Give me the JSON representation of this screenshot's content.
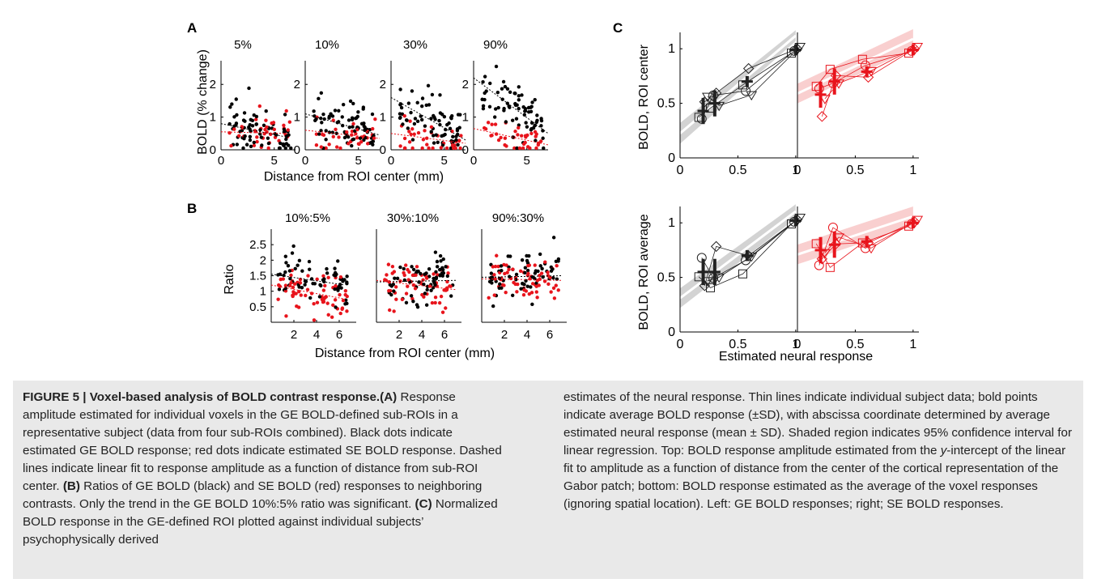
{
  "panel_letters": {
    "A": "A",
    "B": "B",
    "C": "C"
  },
  "panel_a": {
    "titles": [
      "5%",
      "10%",
      "30%",
      "90%"
    ],
    "ylabel": "BOLD (% change)",
    "xlabel": "Distance from ROI center (mm)",
    "yticks": [
      "0",
      "1",
      "2"
    ],
    "xticks": [
      "0",
      "5"
    ]
  },
  "panel_b": {
    "titles": [
      "10%:5%",
      "30%:10%",
      "90%:30%"
    ],
    "ylabel": "Ratio",
    "xlabel": "Distance from ROI center (mm)",
    "yticks": [
      "0.5",
      "1",
      "1.5",
      "2",
      "2.5"
    ],
    "xticks": [
      "2",
      "4",
      "6"
    ]
  },
  "panel_c": {
    "ylabel_top": "BOLD, ROI center",
    "ylabel_bottom": "BOLD, ROI average",
    "xlabel": "Estimated neural response",
    "yticks": [
      "0",
      "0.5",
      "1"
    ],
    "xticks": [
      "0",
      "0.5",
      "1"
    ]
  },
  "chart_data": [
    {
      "type": "scatter",
      "panel": "A",
      "ylabel": "BOLD (% change)",
      "xlabel": "Distance from ROI center (mm)",
      "xlim": [
        0,
        7
      ],
      "ylim": [
        0,
        2.6
      ],
      "subplots": [
        {
          "title": "5%",
          "fit_ge": [
            [
              0,
              0.8
            ],
            [
              6,
              0.4
            ]
          ],
          "fit_se": [
            [
              0,
              0.55
            ],
            [
              6,
              0.5
            ]
          ]
        },
        {
          "title": "10%",
          "fit_ge": [
            [
              0,
              1.1
            ],
            [
              7,
              0.45
            ]
          ],
          "fit_se": [
            [
              0,
              0.6
            ],
            [
              7,
              0.35
            ]
          ]
        },
        {
          "title": "30%",
          "fit_ge": [
            [
              0,
              1.6
            ],
            [
              7,
              0.3
            ]
          ],
          "fit_se": [
            [
              0,
              0.5
            ],
            [
              7,
              0.2
            ]
          ]
        },
        {
          "title": "90%",
          "fit_ge": [
            [
              0,
              2.2
            ],
            [
              7,
              0.5
            ]
          ],
          "fit_se": [
            [
              0,
              0.65
            ],
            [
              7,
              0.15
            ]
          ]
        }
      ]
    },
    {
      "type": "scatter",
      "panel": "B",
      "ylabel": "Ratio",
      "xlabel": "Distance from ROI center (mm)",
      "xlim": [
        0,
        7.5
      ],
      "ylim": [
        0,
        3
      ],
      "subplots": [
        {
          "title": "10%:5%",
          "fit_ge": [
            [
              0,
              1.55
            ],
            [
              6.5,
              1.2
            ]
          ],
          "fit_se": [
            [
              0,
              1.2
            ],
            [
              6.5,
              0.75
            ]
          ]
        },
        {
          "title": "30%:10%",
          "fit_ge": [
            [
              0,
              1.3
            ],
            [
              7,
              1.35
            ]
          ],
          "fit_se": [
            [
              0,
              1.35
            ],
            [
              7,
              1.05
            ]
          ]
        },
        {
          "title": "90%:30%",
          "fit_ge": [
            [
              0,
              1.45
            ],
            [
              7,
              1.5
            ]
          ],
          "fit_se": [
            [
              0,
              1.4
            ],
            [
              7,
              1.35
            ]
          ]
        }
      ]
    },
    {
      "type": "line",
      "panel": "C",
      "xlabel": "Estimated neural response",
      "xlim": [
        0,
        1.05
      ],
      "ylim": [
        0,
        1.15
      ],
      "rows": [
        {
          "ylabel": "BOLD, ROI center",
          "ge": {
            "means": [
              [
                0.2,
                0.43
              ],
              [
                0.3,
                0.5
              ],
              [
                0.58,
                0.7
              ],
              [
                1.0,
                0.99
              ]
            ],
            "band_lo": [
              [
                0,
                0.13
              ],
              [
                1,
                1.07
              ]
            ],
            "band_hi": [
              [
                0,
                0.32
              ],
              [
                1,
                1.17
              ]
            ]
          },
          "se": {
            "means": [
              [
                0.2,
                0.58
              ],
              [
                0.32,
                0.7
              ],
              [
                0.6,
                0.79
              ],
              [
                1.0,
                0.99
              ]
            ],
            "band_lo": [
              [
                0,
                0.5
              ],
              [
                1,
                1.0
              ]
            ],
            "band_hi": [
              [
                0,
                0.68
              ],
              [
                1,
                1.18
              ]
            ]
          }
        },
        {
          "ylabel": "BOLD, ROI average",
          "ge": {
            "means": [
              [
                0.2,
                0.55
              ],
              [
                0.3,
                0.55
              ],
              [
                0.58,
                0.7
              ],
              [
                1.0,
                1.02
              ]
            ],
            "band_lo": [
              [
                0,
                0.22
              ],
              [
                1,
                1.04
              ]
            ],
            "band_hi": [
              [
                0,
                0.4
              ],
              [
                1,
                1.17
              ]
            ]
          },
          "se": {
            "means": [
              [
                0.2,
                0.75
              ],
              [
                0.32,
                0.8
              ],
              [
                0.6,
                0.83
              ],
              [
                1.0,
                1.0
              ]
            ],
            "band_lo": [
              [
                0,
                0.62
              ],
              [
                1,
                0.97
              ]
            ],
            "band_hi": [
              [
                0,
                0.8
              ],
              [
                1,
                1.15
              ]
            ]
          }
        }
      ]
    }
  ],
  "caption": {
    "title": "FIGURE 5 | Voxel-based analysis of BOLD contrast response.",
    "ref_a": "(A)",
    "text_a": " Response amplitude estimated for individual voxels in the GE BOLD-defined sub-ROIs in a representative subject (data from four sub-ROIs combined). Black dots indicate estimated GE BOLD response; red dots indicate estimated SE BOLD response. Dashed lines indicate linear fit to response amplitude as a function of distance from sub-ROI center. ",
    "ref_b": "(B)",
    "text_b": " Ratios of GE BOLD (black) and SE BOLD (red) responses to neighboring contrasts. Only the trend in the GE BOLD 10%:5% ratio was significant. ",
    "ref_c": "(C)",
    "text_c": " Normalized BOLD response in the GE-defined ROI plotted against individual subjects’ psychophysically derived",
    "right_1": "estimates of the neural response. Thin lines indicate individual subject data; bold points indicate average BOLD response (±SD), with abscissa coordinate determined by average estimated neural response (mean ± SD). Shaded region indicates 95% confidence interval for linear regression. Top: BOLD response amplitude estimated from the ",
    "right_italic": "y",
    "right_2": "-intercept of the linear fit to amplitude as a function of distance from the center of the cortical representation of the Gabor patch; bottom: BOLD response estimated as the average of the voxel responses (ignoring spatial location). Left: GE BOLD responses; right; SE BOLD responses."
  }
}
